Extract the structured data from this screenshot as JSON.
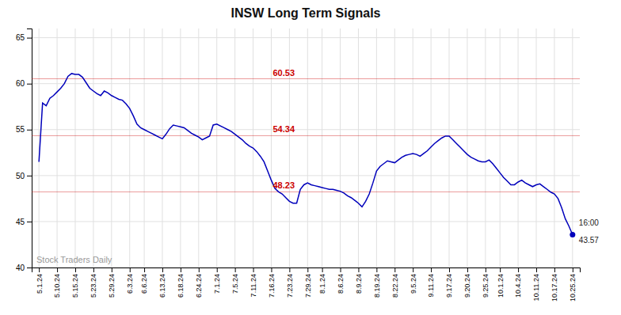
{
  "chart_data": {
    "type": "line",
    "title": "INSW Long Term Signals",
    "categories": [
      "5.1.24",
      null,
      null,
      null,
      null,
      "5.10.24",
      null,
      null,
      null,
      null,
      "5.15.24",
      null,
      null,
      null,
      null,
      "5.23.24",
      null,
      null,
      null,
      null,
      "5.29.24",
      null,
      null,
      null,
      null,
      "6.3.24",
      null,
      null,
      null,
      "6.6.24",
      null,
      null,
      null,
      null,
      "6.13.24",
      null,
      null,
      null,
      null,
      "6.18.24",
      null,
      null,
      null,
      null,
      "6.24.24",
      null,
      null,
      null,
      null,
      "7.1.24",
      null,
      null,
      null,
      null,
      "7.5.24",
      null,
      null,
      null,
      null,
      "7.11.24",
      null,
      null,
      null,
      null,
      "7.16.24",
      null,
      null,
      null,
      null,
      "7.23.24",
      null,
      null,
      null,
      null,
      "7.29.24",
      null,
      null,
      null,
      "8.1.24",
      null,
      null,
      null,
      null,
      "8.6.24",
      null,
      null,
      null,
      null,
      "8.9.24",
      null,
      null,
      null,
      null,
      "8.19.24",
      null,
      null,
      null,
      null,
      "8.22.24",
      null,
      null,
      null,
      null,
      "9.5.24",
      null,
      null,
      null,
      null,
      "9.11.24",
      null,
      null,
      null,
      null,
      "9.17.24",
      null,
      null,
      null,
      null,
      "9.20.24",
      null,
      null,
      null,
      null,
      "9.25.24",
      null,
      null,
      null,
      "10.1.24",
      null,
      null,
      null,
      null,
      "10.4.24",
      null,
      null,
      null,
      null,
      "10.11.24",
      null,
      null,
      null,
      null,
      "10.17.24",
      null,
      null,
      null,
      null,
      "10.25.24"
    ],
    "values": [
      51.5,
      57.9,
      57.6,
      58.4,
      58.7,
      59.1,
      59.5,
      60.0,
      60.8,
      61.1,
      61.0,
      61.0,
      60.7,
      60.1,
      59.5,
      59.2,
      58.9,
      58.7,
      59.2,
      59.0,
      58.7,
      58.5,
      58.3,
      58.2,
      57.8,
      57.3,
      56.5,
      55.6,
      55.2,
      55.0,
      54.8,
      54.6,
      54.4,
      54.2,
      54.0,
      54.5,
      55.1,
      55.5,
      55.4,
      55.3,
      55.2,
      54.9,
      54.6,
      54.4,
      54.2,
      53.9,
      54.1,
      54.3,
      55.5,
      55.6,
      55.4,
      55.2,
      55.0,
      54.8,
      54.5,
      54.2,
      53.9,
      53.5,
      53.2,
      53.0,
      52.6,
      52.1,
      51.5,
      50.5,
      49.5,
      48.6,
      48.23,
      48.0,
      47.6,
      47.2,
      47.0,
      47.0,
      48.5,
      49.0,
      49.2,
      49.0,
      48.9,
      48.8,
      48.7,
      48.6,
      48.5,
      48.5,
      48.4,
      48.3,
      48.1,
      47.8,
      47.6,
      47.3,
      47.0,
      46.6,
      47.2,
      48.0,
      49.2,
      50.5,
      51.0,
      51.3,
      51.6,
      51.5,
      51.4,
      51.7,
      52.0,
      52.2,
      52.3,
      52.4,
      52.3,
      52.1,
      52.4,
      52.7,
      53.1,
      53.5,
      53.8,
      54.1,
      54.3,
      54.3,
      53.9,
      53.5,
      53.1,
      52.7,
      52.3,
      52.0,
      51.8,
      51.6,
      51.5,
      51.5,
      51.7,
      51.3,
      50.8,
      50.3,
      49.8,
      49.4,
      49.0,
      49.0,
      49.3,
      49.5,
      49.2,
      49.0,
      48.8,
      49.0,
      49.1,
      48.8,
      48.5,
      48.2,
      48.0,
      47.5,
      46.5,
      45.3,
      44.5,
      43.57
    ],
    "color": "#0000bb",
    "ylim": [
      40,
      66
    ],
    "yticks": [
      40,
      45,
      50,
      55,
      60,
      65
    ],
    "grid": true,
    "reference_lines": [
      {
        "value": 60.53,
        "label": "60.53",
        "color": "#cc0000"
      },
      {
        "value": 54.34,
        "label": "54.34",
        "color": "#cc0000"
      },
      {
        "value": 48.23,
        "label": "48.23",
        "color": "#cc0000"
      }
    ],
    "watermark": "Stock Traders Daily",
    "last_label": "16:00"
  }
}
